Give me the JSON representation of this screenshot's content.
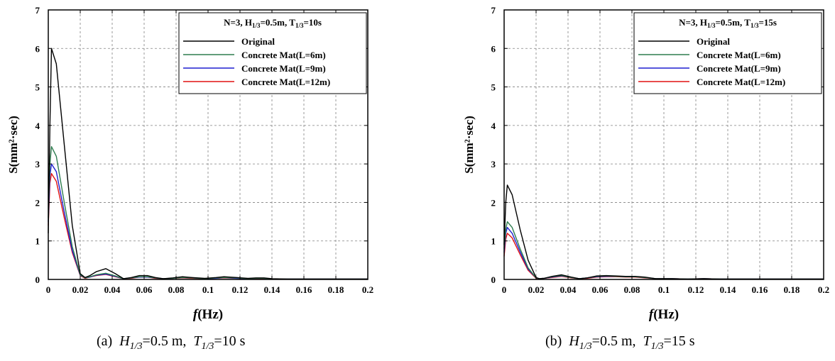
{
  "chart_data": [
    {
      "type": "line",
      "panel_label": "(a)",
      "legend": {
        "title": {
          "n": "N=3, ",
          "h": "H",
          "h_sub": "1/3",
          "h_val": "=0.5m, ",
          "t": "T",
          "t_sub": "1/3",
          "t_val": "=10s"
        },
        "placement": "top-right"
      },
      "xlabel": {
        "f": "f",
        "unit": "(Hz)"
      },
      "ylabel": "S(mm²·sec)",
      "xlim": [
        0,
        0.2
      ],
      "ylim": [
        0,
        7
      ],
      "xticks": [
        "0",
        "0.02",
        "0.04",
        "0.06",
        "0.08",
        "0.1",
        "0.12",
        "0.14",
        "0.16",
        "0.18",
        "0.2"
      ],
      "yticks": [
        "0",
        "1",
        "2",
        "3",
        "4",
        "5",
        "6",
        "7"
      ],
      "grid": true,
      "caption": {
        "label": "(a)",
        "h": "H",
        "h_sub": "1/3",
        "h_val": "=0.5 m,",
        "t": "T",
        "t_sub": "1/3",
        "t_val": "=10 s"
      },
      "series": [
        {
          "name": "Original",
          "color": "#000000",
          "x": [
            0,
            0.001,
            0.002,
            0.005,
            0.01,
            0.015,
            0.02,
            0.023,
            0.026,
            0.03,
            0.036,
            0.042,
            0.047,
            0.052,
            0.057,
            0.062,
            0.067,
            0.072,
            0.078,
            0.084,
            0.09,
            0.098,
            0.105,
            0.11,
            0.118,
            0.125,
            0.13,
            0.135,
            0.14,
            0.15,
            0.16,
            0.18,
            0.2
          ],
          "y": [
            1.2,
            4.0,
            6.0,
            5.6,
            3.5,
            1.4,
            0.15,
            0.05,
            0.1,
            0.2,
            0.28,
            0.15,
            0.02,
            0.05,
            0.1,
            0.1,
            0.05,
            0.02,
            0.04,
            0.07,
            0.05,
            0.03,
            0.05,
            0.07,
            0.05,
            0.03,
            0.04,
            0.04,
            0.02,
            0.01,
            0.01,
            0.01,
            0.01
          ]
        },
        {
          "name": "Concrete Mat(L=6m)",
          "color": "#2e7d4f",
          "x": [
            0,
            0.001,
            0.002,
            0.005,
            0.01,
            0.015,
            0.02,
            0.023,
            0.026,
            0.03,
            0.036,
            0.042,
            0.047,
            0.052,
            0.057,
            0.062,
            0.067,
            0.072,
            0.078,
            0.084,
            0.09,
            0.098,
            0.105,
            0.11,
            0.118,
            0.125,
            0.13,
            0.135,
            0.14,
            0.15,
            0.16,
            0.18,
            0.2
          ],
          "y": [
            1.6,
            3.0,
            3.45,
            3.2,
            2.0,
            0.85,
            0.12,
            0.04,
            0.07,
            0.12,
            0.16,
            0.09,
            0.02,
            0.04,
            0.07,
            0.07,
            0.04,
            0.02,
            0.03,
            0.05,
            0.04,
            0.02,
            0.04,
            0.05,
            0.04,
            0.02,
            0.03,
            0.03,
            0.01,
            0.01,
            0.01,
            0.01,
            0.01
          ]
        },
        {
          "name": "Concrete Mat(L=9m)",
          "color": "#1f1fd0",
          "x": [
            0,
            0.001,
            0.002,
            0.005,
            0.01,
            0.015,
            0.02,
            0.023,
            0.026,
            0.03,
            0.036,
            0.042,
            0.047,
            0.052,
            0.057,
            0.062,
            0.067,
            0.072,
            0.078,
            0.084,
            0.09,
            0.098,
            0.105,
            0.11,
            0.118,
            0.125,
            0.13,
            0.135,
            0.14,
            0.15,
            0.16,
            0.18,
            0.2
          ],
          "y": [
            1.5,
            2.7,
            3.0,
            2.8,
            1.75,
            0.75,
            0.11,
            0.04,
            0.06,
            0.11,
            0.14,
            0.08,
            0.02,
            0.04,
            0.06,
            0.06,
            0.04,
            0.02,
            0.03,
            0.05,
            0.04,
            0.02,
            0.03,
            0.05,
            0.03,
            0.02,
            0.03,
            0.03,
            0.01,
            0.01,
            0.01,
            0.01,
            0.01
          ]
        },
        {
          "name": "Concrete Mat(L=12m)",
          "color": "#e01010",
          "x": [
            0,
            0.001,
            0.002,
            0.005,
            0.01,
            0.015,
            0.02,
            0.023,
            0.026,
            0.03,
            0.036,
            0.042,
            0.047,
            0.052,
            0.057,
            0.062,
            0.067,
            0.072,
            0.078,
            0.084,
            0.09,
            0.098,
            0.105,
            0.11,
            0.118,
            0.125,
            0.13,
            0.135,
            0.14,
            0.15,
            0.16,
            0.18,
            0.2
          ],
          "y": [
            1.4,
            2.5,
            2.75,
            2.55,
            1.6,
            0.7,
            0.1,
            0.03,
            0.06,
            0.1,
            0.13,
            0.07,
            0.02,
            0.03,
            0.06,
            0.06,
            0.03,
            0.02,
            0.03,
            0.04,
            0.03,
            0.02,
            0.03,
            0.04,
            0.03,
            0.02,
            0.02,
            0.02,
            0.01,
            0.01,
            0.01,
            0.01,
            0.01
          ]
        }
      ]
    },
    {
      "type": "line",
      "panel_label": "(b)",
      "legend": {
        "title": {
          "n": "N=3, ",
          "h": "H",
          "h_sub": "1/3",
          "h_val": "=0.5m, ",
          "t": "T",
          "t_sub": "1/3",
          "t_val": "=15s"
        },
        "placement": "top-right"
      },
      "xlabel": {
        "f": "f",
        "unit": "(Hz)"
      },
      "ylabel": "S(mm²·sec)",
      "xlim": [
        0,
        0.2
      ],
      "ylim": [
        0,
        7
      ],
      "xticks": [
        "0",
        "0.02",
        "0.04",
        "0.06",
        "0.08",
        "0.1",
        "0.12",
        "0.14",
        "0.16",
        "0.18",
        "0.2"
      ],
      "yticks": [
        "0",
        "1",
        "2",
        "3",
        "4",
        "5",
        "6",
        "7"
      ],
      "grid": true,
      "caption": {
        "label": "(b)",
        "h": "H",
        "h_sub": "1/3",
        "h_val": "=0.5 m,",
        "t": "T",
        "t_sub": "1/3",
        "t_val": "=15 s"
      },
      "series": [
        {
          "name": "Original",
          "color": "#000000",
          "x": [
            0,
            0.001,
            0.002,
            0.005,
            0.01,
            0.015,
            0.02,
            0.022,
            0.025,
            0.03,
            0.036,
            0.042,
            0.047,
            0.052,
            0.058,
            0.064,
            0.07,
            0.076,
            0.082,
            0.088,
            0.095,
            0.105,
            0.115,
            0.125,
            0.135,
            0.15,
            0.16,
            0.18,
            0.2
          ],
          "y": [
            0.9,
            2.0,
            2.45,
            2.2,
            1.3,
            0.5,
            0.05,
            0.02,
            0.03,
            0.08,
            0.12,
            0.06,
            0.02,
            0.04,
            0.09,
            0.1,
            0.09,
            0.08,
            0.08,
            0.06,
            0.02,
            0.02,
            0.01,
            0.02,
            0.01,
            0.01,
            0.01,
            0.01,
            0.01
          ]
        },
        {
          "name": "Concrete Mat(L=6m)",
          "color": "#2e7d4f",
          "x": [
            0,
            0.001,
            0.002,
            0.005,
            0.01,
            0.015,
            0.02,
            0.022,
            0.025,
            0.03,
            0.036,
            0.042,
            0.047,
            0.052,
            0.058,
            0.064,
            0.07,
            0.076,
            0.082,
            0.088,
            0.095,
            0.105,
            0.115,
            0.125,
            0.135,
            0.15,
            0.16,
            0.18,
            0.2
          ],
          "y": [
            0.8,
            1.3,
            1.5,
            1.35,
            0.8,
            0.3,
            0.04,
            0.02,
            0.03,
            0.07,
            0.1,
            0.05,
            0.02,
            0.04,
            0.08,
            0.09,
            0.08,
            0.07,
            0.07,
            0.05,
            0.02,
            0.02,
            0.01,
            0.02,
            0.01,
            0.01,
            0.01,
            0.01,
            0.01
          ]
        },
        {
          "name": "Concrete Mat(L=9m)",
          "color": "#1f1fd0",
          "x": [
            0,
            0.001,
            0.002,
            0.005,
            0.01,
            0.015,
            0.02,
            0.022,
            0.025,
            0.03,
            0.036,
            0.042,
            0.047,
            0.052,
            0.058,
            0.064,
            0.07,
            0.076,
            0.082,
            0.088,
            0.095,
            0.105,
            0.115,
            0.125,
            0.135,
            0.15,
            0.16,
            0.18,
            0.2
          ],
          "y": [
            0.7,
            1.2,
            1.35,
            1.2,
            0.72,
            0.27,
            0.04,
            0.02,
            0.03,
            0.06,
            0.09,
            0.05,
            0.02,
            0.04,
            0.07,
            0.08,
            0.08,
            0.07,
            0.07,
            0.05,
            0.02,
            0.02,
            0.01,
            0.02,
            0.01,
            0.01,
            0.01,
            0.01,
            0.01
          ]
        },
        {
          "name": "Concrete Mat(L=12m)",
          "color": "#e01010",
          "x": [
            0,
            0.001,
            0.002,
            0.005,
            0.01,
            0.015,
            0.02,
            0.022,
            0.025,
            0.03,
            0.036,
            0.042,
            0.047,
            0.052,
            0.058,
            0.064,
            0.07,
            0.076,
            0.082,
            0.088,
            0.095,
            0.105,
            0.115,
            0.125,
            0.135,
            0.15,
            0.16,
            0.18,
            0.2
          ],
          "y": [
            0.6,
            1.05,
            1.2,
            1.08,
            0.65,
            0.24,
            0.03,
            0.02,
            0.03,
            0.05,
            0.08,
            0.04,
            0.02,
            0.03,
            0.06,
            0.07,
            0.07,
            0.06,
            0.06,
            0.04,
            0.02,
            0.02,
            0.01,
            0.02,
            0.01,
            0.01,
            0.01,
            0.01,
            0.01
          ]
        }
      ]
    }
  ]
}
